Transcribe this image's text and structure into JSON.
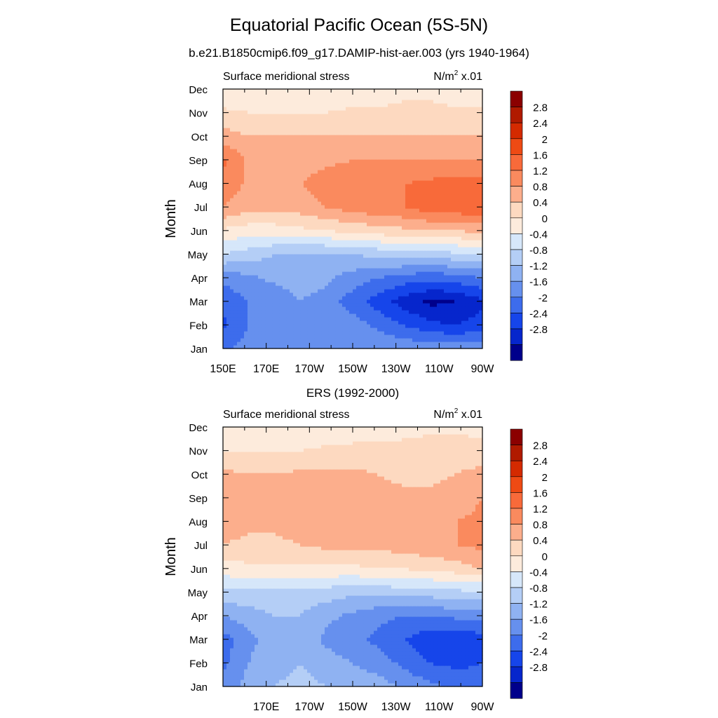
{
  "title": "Equatorial Pacific Ocean (5S-5N)",
  "subtitle": "b.e21.B1850cmip6.f09_g17.DAMIP-hist-aer.003 (yrs 1940-1964)",
  "colorbar": {
    "labels": [
      "2.8",
      "2.4",
      "2",
      "1.6",
      "1.2",
      "0.8",
      "0.4",
      "0",
      "-0.4",
      "-0.8",
      "-1.2",
      "-1.6",
      "-2",
      "-2.4",
      "-2.8"
    ],
    "colors": [
      "#8b0000",
      "#b01a00",
      "#d42a00",
      "#ee4a14",
      "#f86a3a",
      "#fa8a5e",
      "#fcae8c",
      "#fdd9c0",
      "#fdebdc",
      "#d6e7fa",
      "#b4cef6",
      "#8fb2f2",
      "#6690ee",
      "#3d6cec",
      "#1645ea",
      "#0626cc",
      "#00008b"
    ]
  },
  "chart_data": [
    {
      "type": "contour",
      "panel_title": "",
      "left_label": "Surface meridional stress",
      "right_label_base": "N/m",
      "right_label_exp": "2",
      "right_label_tail": " x.01",
      "ylabel": "Month",
      "yticks": [
        "Jan",
        "Feb",
        "Mar",
        "Apr",
        "May",
        "Jun",
        "Jul",
        "Aug",
        "Sep",
        "Oct",
        "Nov",
        "Dec"
      ],
      "xticks": [
        "150E",
        "170E",
        "170W",
        "150W",
        "130W",
        "110W",
        "90W"
      ],
      "xlim": [
        150,
        270
      ],
      "xtick_values": [
        150,
        170,
        190,
        210,
        230,
        250,
        270
      ],
      "ylim": [
        1,
        12
      ],
      "levels": [
        -2.8,
        -2.4,
        -2,
        -1.6,
        -1.2,
        -0.8,
        -0.4,
        0,
        0.4,
        0.8,
        1.2,
        1.6,
        2,
        2.4,
        2.8
      ],
      "grid_lon": [
        150,
        162,
        174,
        186,
        198,
        210,
        222,
        234,
        246,
        258,
        270
      ],
      "grid_month": [
        1,
        2,
        3,
        4,
        5,
        6,
        7,
        8,
        9,
        10,
        11,
        12
      ],
      "values": [
        [
          -1.7,
          -1.4,
          -1.3,
          -1.2,
          -1.2,
          -1.2,
          -1.2,
          -1.3,
          -1.3,
          -1.3,
          -1.3
        ],
        [
          -2.1,
          -1.6,
          -1.6,
          -1.2,
          -1.3,
          -1.4,
          -1.7,
          -2.0,
          -2.3,
          -2.4,
          -2.2
        ],
        [
          -1.9,
          -1.6,
          -1.5,
          -1.2,
          -1.4,
          -1.8,
          -2.2,
          -2.6,
          -2.9,
          -2.8,
          -2.5
        ],
        [
          -1.5,
          -1.3,
          -1.1,
          -1.0,
          -1.1,
          -1.4,
          -1.6,
          -1.8,
          -1.9,
          -1.8,
          -1.6
        ],
        [
          -0.4,
          -0.6,
          -0.8,
          -0.9,
          -0.9,
          -0.8,
          -0.7,
          -0.6,
          -0.6,
          -0.5,
          -0.5
        ],
        [
          0.3,
          0.2,
          0.2,
          0.3,
          0.4,
          0.5,
          0.6,
          0.7,
          0.8,
          0.8,
          0.9
        ],
        [
          1.2,
          0.9,
          0.9,
          1.0,
          1.2,
          1.4,
          1.5,
          1.6,
          1.8,
          1.9,
          1.9
        ],
        [
          1.5,
          1.1,
          1.1,
          1.2,
          1.4,
          1.6,
          1.6,
          1.6,
          1.7,
          1.8,
          1.7
        ],
        [
          1.7,
          1.1,
          1.0,
          1.0,
          1.1,
          1.2,
          1.2,
          1.2,
          1.2,
          1.2,
          1.2
        ],
        [
          1.0,
          0.8,
          0.8,
          0.8,
          0.8,
          0.8,
          0.8,
          0.8,
          0.8,
          0.8,
          0.8
        ],
        [
          0.5,
          0.4,
          0.4,
          0.4,
          0.4,
          0.5,
          0.5,
          0.6,
          0.6,
          0.5,
          0.5
        ],
        [
          0.0,
          0.1,
          0.1,
          0.0,
          0.1,
          0.1,
          0.1,
          0.2,
          0.2,
          0.1,
          0.0
        ]
      ]
    },
    {
      "type": "contour",
      "panel_title": "ERS (1992-2000)",
      "left_label": "Surface meridional stress",
      "right_label_base": "N/m",
      "right_label_exp": "2",
      "right_label_tail": " x.01",
      "ylabel": "Month",
      "yticks": [
        "Jan",
        "Feb",
        "Mar",
        "Apr",
        "May",
        "Jun",
        "Jul",
        "Aug",
        "Sep",
        "Oct",
        "Nov",
        "Dec"
      ],
      "xticks": [
        "170E",
        "170W",
        "150W",
        "130W",
        "110W",
        "90W"
      ],
      "xlim": [
        150,
        270
      ],
      "xtick_values": [
        170,
        190,
        210,
        230,
        250,
        270
      ],
      "ylim": [
        1,
        12
      ],
      "levels": [
        -2.8,
        -2.4,
        -2,
        -1.6,
        -1.2,
        -0.8,
        -0.4,
        0,
        0.4,
        0.8,
        1.2,
        1.6,
        2,
        2.4,
        2.8
      ],
      "grid_lon": [
        150,
        162,
        174,
        186,
        198,
        210,
        222,
        234,
        246,
        258,
        270
      ],
      "grid_month": [
        1,
        2,
        3,
        4,
        5,
        6,
        7,
        8,
        9,
        10,
        11,
        12
      ],
      "values": [
        [
          -1.5,
          -1.0,
          -0.8,
          -0.7,
          -0.8,
          -0.9,
          -1.0,
          -1.3,
          -1.5,
          -1.7,
          -1.8
        ],
        [
          -1.7,
          -1.2,
          -0.9,
          -0.8,
          -1.0,
          -1.2,
          -1.4,
          -1.7,
          -2.0,
          -2.1,
          -2.0
        ],
        [
          -1.8,
          -1.3,
          -1.0,
          -0.9,
          -1.3,
          -1.5,
          -1.7,
          -2.0,
          -2.3,
          -2.4,
          -2.2
        ],
        [
          -1.2,
          -1.0,
          -0.8,
          -0.8,
          -1.1,
          -1.3,
          -1.5,
          -1.6,
          -1.6,
          -1.5,
          -1.4
        ],
        [
          -0.5,
          -0.5,
          -0.5,
          -0.6,
          -0.6,
          -0.7,
          -0.7,
          -0.6,
          -0.6,
          -0.5,
          -0.5
        ],
        [
          0.2,
          0.3,
          0.3,
          0.3,
          0.3,
          0.3,
          0.4,
          0.4,
          0.5,
          0.6,
          0.8
        ],
        [
          0.8,
          0.7,
          0.7,
          0.8,
          0.9,
          0.9,
          0.9,
          1.0,
          1.1,
          1.2,
          1.3
        ],
        [
          1.0,
          0.9,
          0.9,
          1.0,
          1.1,
          1.0,
          0.9,
          1.0,
          1.1,
          1.2,
          1.3
        ],
        [
          1.2,
          0.9,
          1.0,
          1.0,
          1.1,
          1.0,
          0.9,
          0.9,
          0.9,
          1.0,
          1.2
        ],
        [
          0.9,
          0.8,
          0.8,
          0.9,
          0.9,
          0.9,
          0.8,
          0.7,
          0.7,
          0.8,
          0.9
        ],
        [
          0.4,
          0.4,
          0.4,
          0.4,
          0.5,
          0.5,
          0.5,
          0.5,
          0.6,
          0.7,
          0.6
        ],
        [
          0.1,
          0.1,
          0.0,
          0.0,
          0.1,
          0.2,
          0.2,
          0.3,
          0.3,
          0.3,
          0.2
        ]
      ]
    }
  ]
}
